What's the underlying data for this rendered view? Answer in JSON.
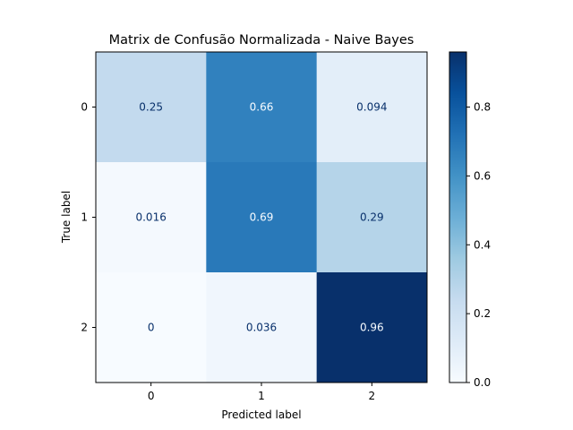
{
  "chart_data": {
    "type": "heatmap",
    "title": "Matrix de Confusão Normalizada - Naive Bayes",
    "xlabel": "Predicted label",
    "ylabel": "True label",
    "x_categories": [
      "0",
      "1",
      "2"
    ],
    "y_categories": [
      "0",
      "1",
      "2"
    ],
    "values": [
      [
        0.25,
        0.66,
        0.094
      ],
      [
        0.016,
        0.69,
        0.29
      ],
      [
        0,
        0.036,
        0.96
      ]
    ],
    "value_labels": [
      [
        "0.25",
        "0.66",
        "0.094"
      ],
      [
        "0.016",
        "0.69",
        "0.29"
      ],
      [
        "0",
        "0.036",
        "0.96"
      ]
    ],
    "colorbar": {
      "min": 0,
      "max": 0.96,
      "ticks": [
        0.0,
        0.2,
        0.4,
        0.6,
        0.8
      ],
      "tick_labels": [
        "0.0",
        "0.2",
        "0.4",
        "0.6",
        "0.8"
      ]
    },
    "colormap": "Blues",
    "grid": false
  }
}
